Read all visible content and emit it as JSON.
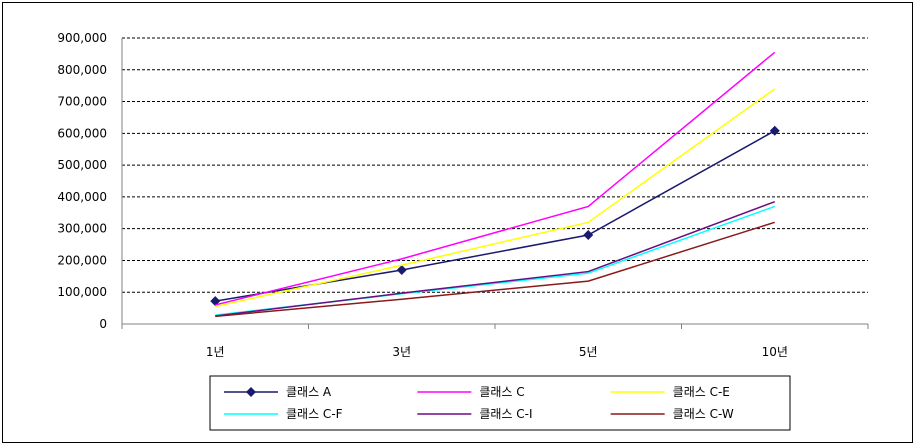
{
  "chart_data": {
    "type": "line",
    "categories": [
      "1년",
      "3년",
      "5년",
      "10년"
    ],
    "ylim": [
      0,
      900000
    ],
    "yticks": [
      0,
      100000,
      200000,
      300000,
      400000,
      500000,
      600000,
      700000,
      800000,
      900000
    ],
    "ytick_labels": [
      "0",
      "100,000",
      "200,000",
      "300,000",
      "400,000",
      "500,000",
      "600,000",
      "700,000",
      "800,000",
      "900,000"
    ],
    "grid": "horizontal dashed",
    "legend_position": "bottom",
    "series": [
      {
        "name": "클래스 A",
        "values": [
          72000,
          170000,
          280000,
          608000
        ],
        "color": "#1a1a6e",
        "marker": "diamond"
      },
      {
        "name": "클래스 C",
        "values": [
          60000,
          205000,
          370000,
          855000
        ],
        "color": "#ff00ff",
        "marker": "none"
      },
      {
        "name": "클래스 C-E",
        "values": [
          55000,
          185000,
          320000,
          740000
        ],
        "color": "#ffff00",
        "marker": "none"
      },
      {
        "name": "클래스 C-F",
        "values": [
          28000,
          95000,
          160000,
          370000
        ],
        "color": "#00ffff",
        "marker": "none"
      },
      {
        "name": "클래스 C-I",
        "values": [
          25000,
          97000,
          165000,
          385000
        ],
        "color": "#6a0d83",
        "marker": "none"
      },
      {
        "name": "클래스 C-W",
        "values": [
          24000,
          78000,
          135000,
          320000
        ],
        "color": "#8b1a1a",
        "marker": "none"
      }
    ]
  }
}
